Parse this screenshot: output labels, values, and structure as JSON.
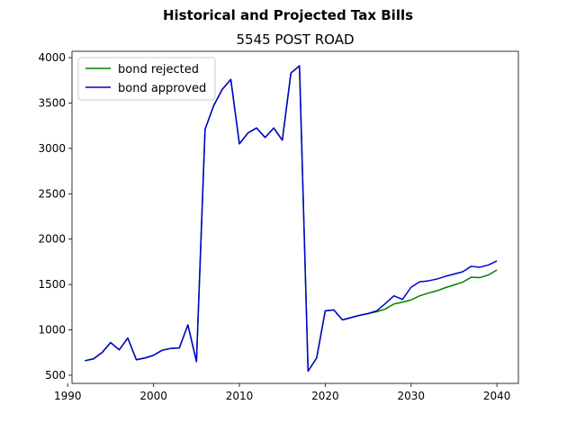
{
  "chart_data": {
    "type": "line",
    "suptitle": "Historical and Projected Tax Bills",
    "title": "5545 POST ROAD",
    "xlabel": "",
    "ylabel": "",
    "xlim": [
      1990.5,
      2042.5
    ],
    "ylim": [
      410,
      4070
    ],
    "xticks": [
      1990,
      2000,
      2010,
      2020,
      2030,
      2040
    ],
    "yticks": [
      500,
      1000,
      1500,
      2000,
      2500,
      3000,
      3500,
      4000
    ],
    "grid": false,
    "legend": "top-left",
    "series": [
      {
        "name": "bond rejected",
        "color": "#008000",
        "x": [
          1992,
          1993,
          1994,
          1995,
          1996,
          1997,
          1998,
          1999,
          2000,
          2001,
          2002,
          2003,
          2004,
          2005,
          2006,
          2007,
          2008,
          2009,
          2010,
          2011,
          2012,
          2013,
          2014,
          2015,
          2016,
          2017,
          2018,
          2019,
          2020,
          2021,
          2022,
          2023,
          2024,
          2025,
          2026,
          2027,
          2028,
          2029,
          2030,
          2031,
          2032,
          2033,
          2034,
          2035,
          2036,
          2037,
          2038,
          2039,
          2040
        ],
        "y": [
          660,
          680,
          750,
          860,
          780,
          910,
          670,
          690,
          720,
          775,
          795,
          800,
          1055,
          650,
          3210,
          3470,
          3650,
          3760,
          3050,
          3170,
          3225,
          3120,
          3225,
          3090,
          3830,
          3910,
          545,
          690,
          1210,
          1220,
          1110,
          1135,
          1160,
          1180,
          1200,
          1230,
          1285,
          1305,
          1330,
          1375,
          1405,
          1430,
          1465,
          1495,
          1525,
          1580,
          1575,
          1605,
          1660
        ]
      },
      {
        "name": "bond approved",
        "color": "#0000cc",
        "x": [
          1992,
          1993,
          1994,
          1995,
          1996,
          1997,
          1998,
          1999,
          2000,
          2001,
          2002,
          2003,
          2004,
          2005,
          2006,
          2007,
          2008,
          2009,
          2010,
          2011,
          2012,
          2013,
          2014,
          2015,
          2016,
          2017,
          2018,
          2019,
          2020,
          2021,
          2022,
          2023,
          2024,
          2025,
          2026,
          2027,
          2028,
          2029,
          2030,
          2031,
          2032,
          2033,
          2034,
          2035,
          2036,
          2037,
          2038,
          2039,
          2040
        ],
        "y": [
          660,
          680,
          750,
          860,
          780,
          910,
          670,
          690,
          720,
          775,
          795,
          800,
          1055,
          650,
          3210,
          3470,
          3650,
          3760,
          3050,
          3170,
          3225,
          3120,
          3225,
          3090,
          3830,
          3910,
          545,
          690,
          1210,
          1220,
          1110,
          1135,
          1160,
          1180,
          1210,
          1290,
          1375,
          1335,
          1470,
          1530,
          1540,
          1560,
          1590,
          1615,
          1640,
          1700,
          1690,
          1715,
          1760
        ]
      }
    ]
  }
}
